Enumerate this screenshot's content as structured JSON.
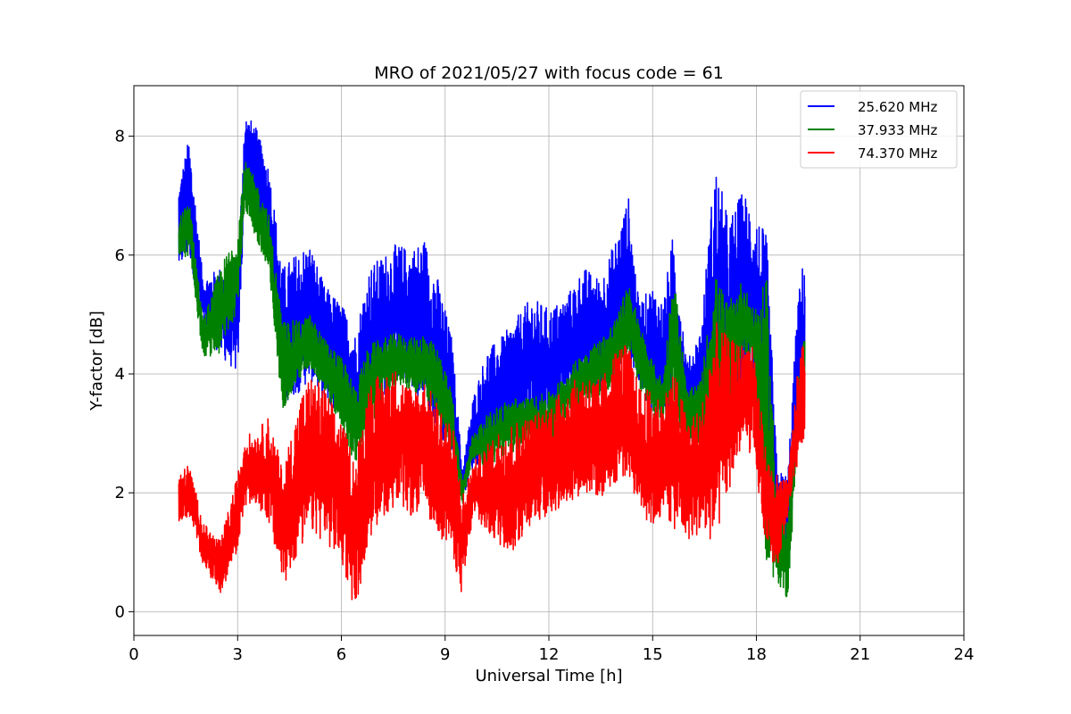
{
  "chart_data": {
    "type": "line",
    "title": "MRO of 2021/05/27 with focus code = 61",
    "xlabel": "Universal Time [h]",
    "ylabel": "Y-factor [dB]",
    "xlim": [
      0,
      24
    ],
    "ylim": [
      -0.4,
      8.85
    ],
    "xticks": [
      0,
      3,
      6,
      9,
      12,
      15,
      18,
      21,
      24
    ],
    "yticks": [
      0,
      2,
      4,
      6,
      8
    ],
    "grid": true,
    "legend_position": "top-right",
    "series": [
      {
        "name": "25.620 MHz",
        "color": "#0000ff",
        "x": [
          1.3,
          1.6,
          2.0,
          2.5,
          3.0,
          3.2,
          3.5,
          3.9,
          4.3,
          4.8,
          5.1,
          5.5,
          6.0,
          6.4,
          6.8,
          7.2,
          7.6,
          8.0,
          8.4,
          8.8,
          9.2,
          9.5,
          9.8,
          10.2,
          10.6,
          11.0,
          11.5,
          12.0,
          12.5,
          13.0,
          13.5,
          14.0,
          14.3,
          14.6,
          15.0,
          15.3,
          15.6,
          16.0,
          16.4,
          16.8,
          17.2,
          17.6,
          17.9,
          18.3,
          18.6,
          18.9,
          19.2,
          19.4
        ],
        "min": [
          5.7,
          6.0,
          4.8,
          4.3,
          4.0,
          6.9,
          6.7,
          6.1,
          3.5,
          3.7,
          3.9,
          3.5,
          3.3,
          2.7,
          3.3,
          3.6,
          3.9,
          3.8,
          3.3,
          3.0,
          2.5,
          1.9,
          2.4,
          2.6,
          2.8,
          2.9,
          3.1,
          3.1,
          3.5,
          3.6,
          3.7,
          3.8,
          4.2,
          3.8,
          3.2,
          3.4,
          3.3,
          2.9,
          3.0,
          2.7,
          3.1,
          3.2,
          3.4,
          1.3,
          1.0,
          0.9,
          2.6,
          3.3
        ],
        "max": [
          7.2,
          8.0,
          5.6,
          5.8,
          5.6,
          8.4,
          8.2,
          7.5,
          5.8,
          6.1,
          6.2,
          5.5,
          5.2,
          4.7,
          5.8,
          6.0,
          6.2,
          6.1,
          6.3,
          5.6,
          4.6,
          2.4,
          3.6,
          4.4,
          4.6,
          4.9,
          5.3,
          5.1,
          5.3,
          5.8,
          5.6,
          6.4,
          7.0,
          5.2,
          5.5,
          5.2,
          6.4,
          4.2,
          4.8,
          7.6,
          6.6,
          7.1,
          6.9,
          6.3,
          2.4,
          2.3,
          5.3,
          6.1
        ]
      },
      {
        "name": "37.933 MHz",
        "color": "#008000",
        "x": [
          1.3,
          1.6,
          2.0,
          2.5,
          3.0,
          3.2,
          3.5,
          3.9,
          4.3,
          4.8,
          5.1,
          5.5,
          6.0,
          6.4,
          6.8,
          7.2,
          7.6,
          8.0,
          8.4,
          8.8,
          9.2,
          9.5,
          9.8,
          10.2,
          10.6,
          11.0,
          11.5,
          12.0,
          12.5,
          13.0,
          13.5,
          14.0,
          14.3,
          14.6,
          15.0,
          15.3,
          15.6,
          16.0,
          16.4,
          16.8,
          17.2,
          17.6,
          17.9,
          18.3,
          18.6,
          18.9,
          19.2,
          19.4
        ],
        "min": [
          5.9,
          6.0,
          4.3,
          4.3,
          5.1,
          6.8,
          6.3,
          5.6,
          3.4,
          3.9,
          4.1,
          3.7,
          3.1,
          2.4,
          3.0,
          3.5,
          3.8,
          3.7,
          3.6,
          3.3,
          2.6,
          1.8,
          2.6,
          2.4,
          2.6,
          2.7,
          2.9,
          2.8,
          3.2,
          3.5,
          3.6,
          3.9,
          4.4,
          3.8,
          3.3,
          3.2,
          3.3,
          2.8,
          2.8,
          2.6,
          3.0,
          4.2,
          4.3,
          0.7,
          0.5,
          0.2,
          2.8,
          3.6
        ],
        "max": [
          6.6,
          7.0,
          4.9,
          5.8,
          6.4,
          7.6,
          7.3,
          6.7,
          4.9,
          4.9,
          5.0,
          4.6,
          4.3,
          3.8,
          4.5,
          4.6,
          4.7,
          4.6,
          4.7,
          4.4,
          3.7,
          2.2,
          3.0,
          3.3,
          3.5,
          3.6,
          3.6,
          3.7,
          4.0,
          4.4,
          4.6,
          5.0,
          5.6,
          4.9,
          4.2,
          3.9,
          5.8,
          3.7,
          3.9,
          5.7,
          5.2,
          5.6,
          5.1,
          5.6,
          1.8,
          1.5,
          3.9,
          4.7
        ]
      },
      {
        "name": "74.370 MHz",
        "color": "#ff0000",
        "x": [
          1.3,
          1.6,
          2.0,
          2.5,
          3.0,
          3.2,
          3.5,
          3.9,
          4.3,
          4.8,
          5.1,
          5.5,
          6.0,
          6.4,
          6.8,
          7.2,
          7.6,
          8.0,
          8.4,
          8.8,
          9.2,
          9.5,
          9.8,
          10.2,
          10.6,
          11.0,
          11.5,
          12.0,
          12.5,
          13.0,
          13.5,
          14.0,
          14.3,
          14.6,
          15.0,
          15.3,
          15.6,
          16.0,
          16.4,
          16.8,
          17.2,
          17.6,
          17.9,
          18.3,
          18.6,
          18.9,
          19.2,
          19.4
        ],
        "min": [
          1.5,
          1.6,
          0.8,
          0.3,
          1.0,
          1.8,
          1.8,
          1.5,
          0.4,
          1.0,
          1.3,
          1.2,
          0.8,
          0.0,
          1.2,
          1.6,
          1.8,
          1.6,
          1.7,
          1.3,
          1.0,
          0.2,
          1.6,
          1.3,
          1.1,
          1.0,
          1.5,
          1.6,
          1.8,
          2.0,
          1.9,
          2.2,
          2.3,
          1.7,
          1.4,
          1.6,
          1.4,
          1.2,
          1.3,
          1.1,
          2.0,
          2.8,
          2.6,
          1.0,
          0.7,
          1.6,
          2.5,
          3.0
        ],
        "max": [
          2.3,
          2.5,
          1.5,
          1.2,
          2.3,
          3.0,
          3.0,
          3.3,
          2.4,
          3.6,
          4.0,
          3.8,
          3.2,
          2.6,
          3.9,
          4.0,
          4.1,
          3.8,
          3.9,
          3.5,
          3.2,
          2.0,
          2.5,
          2.8,
          3.1,
          3.2,
          3.3,
          3.5,
          3.8,
          4.0,
          3.9,
          4.5,
          4.5,
          3.8,
          3.7,
          3.6,
          4.1,
          3.3,
          3.4,
          4.9,
          4.6,
          4.5,
          4.6,
          2.6,
          2.3,
          2.2,
          4.1,
          4.8
        ]
      }
    ]
  }
}
